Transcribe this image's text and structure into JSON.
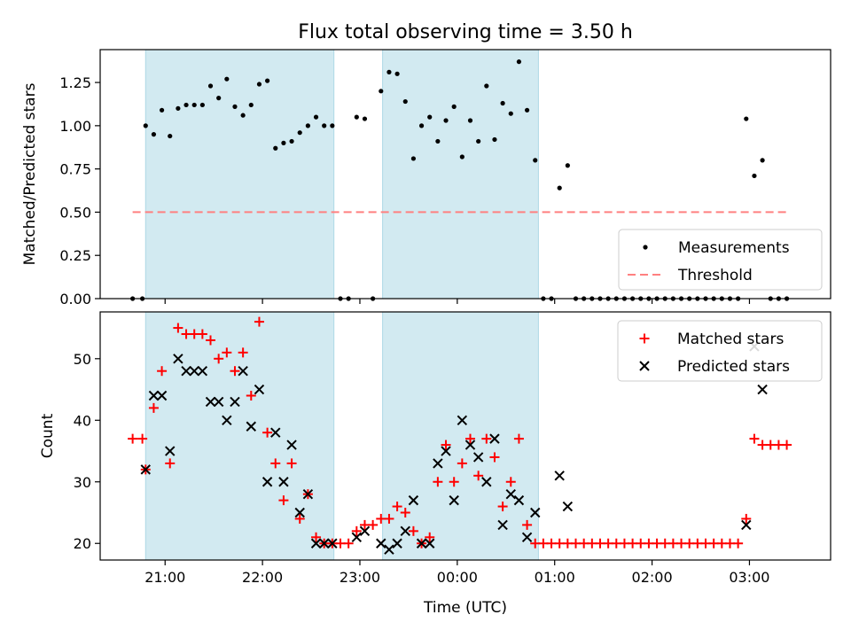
{
  "chart_data": [
    {
      "type": "scatter",
      "title": "Flux total observing time = 3.50 h",
      "xlabel": "",
      "ylabel": "Matched/Predicted stars",
      "xlim": [
        "20:20",
        "03:50"
      ],
      "ylim": [
        0,
        1.44
      ],
      "x_unit": "time (UTC, hh:mm)",
      "yticks": [
        "0.00",
        "0.25",
        "0.50",
        "0.75",
        "1.00",
        "1.25"
      ],
      "xticks_visible": false,
      "shaded_intervals": [
        [
          "20:48",
          "22:44"
        ],
        [
          "23:14",
          "00:50"
        ]
      ],
      "shade_color": "#add8e6",
      "series": [
        {
          "name": "Measurements",
          "marker": "dot",
          "color": "#000000",
          "points": [
            [
              "20:40",
              0.0
            ],
            [
              "20:46",
              0.0
            ],
            [
              "20:48",
              1.0
            ],
            [
              "20:53",
              0.95
            ],
            [
              "20:58",
              1.09
            ],
            [
              "21:03",
              0.94
            ],
            [
              "21:08",
              1.1
            ],
            [
              "21:13",
              1.12
            ],
            [
              "21:18",
              1.12
            ],
            [
              "21:23",
              1.12
            ],
            [
              "21:28",
              1.23
            ],
            [
              "21:33",
              1.16
            ],
            [
              "21:38",
              1.27
            ],
            [
              "21:43",
              1.11
            ],
            [
              "21:48",
              1.06
            ],
            [
              "21:53",
              1.12
            ],
            [
              "21:58",
              1.24
            ],
            [
              "22:03",
              1.26
            ],
            [
              "22:08",
              0.87
            ],
            [
              "22:13",
              0.9
            ],
            [
              "22:18",
              0.91
            ],
            [
              "22:23",
              0.96
            ],
            [
              "22:28",
              1.0
            ],
            [
              "22:33",
              1.05
            ],
            [
              "22:38",
              1.0
            ],
            [
              "22:43",
              1.0
            ],
            [
              "22:48",
              0.0
            ],
            [
              "22:53",
              0.0
            ],
            [
              "22:58",
              1.05
            ],
            [
              "23:03",
              1.04
            ],
            [
              "23:08",
              0.0
            ],
            [
              "23:13",
              1.2
            ],
            [
              "23:18",
              1.31
            ],
            [
              "23:23",
              1.3
            ],
            [
              "23:28",
              1.14
            ],
            [
              "23:33",
              0.81
            ],
            [
              "23:38",
              1.0
            ],
            [
              "23:43",
              1.05
            ],
            [
              "23:48",
              0.91
            ],
            [
              "23:53",
              1.03
            ],
            [
              "23:58",
              1.11
            ],
            [
              "00:03",
              0.82
            ],
            [
              "00:08",
              1.03
            ],
            [
              "00:13",
              0.91
            ],
            [
              "00:18",
              1.23
            ],
            [
              "00:23",
              0.92
            ],
            [
              "00:28",
              1.13
            ],
            [
              "00:33",
              1.07
            ],
            [
              "00:38",
              1.37
            ],
            [
              "00:43",
              1.09
            ],
            [
              "00:48",
              0.8
            ],
            [
              "00:53",
              0.0
            ],
            [
              "00:58",
              0.0
            ],
            [
              "01:03",
              0.64
            ],
            [
              "01:08",
              0.77
            ],
            [
              "01:13",
              0.0
            ],
            [
              "01:18",
              0.0
            ],
            [
              "01:23",
              0.0
            ],
            [
              "01:28",
              0.0
            ],
            [
              "01:33",
              0.0
            ],
            [
              "01:38",
              0.0
            ],
            [
              "01:43",
              0.0
            ],
            [
              "01:48",
              0.0
            ],
            [
              "01:53",
              0.0
            ],
            [
              "01:58",
              0.0
            ],
            [
              "02:03",
              0.0
            ],
            [
              "02:08",
              0.0
            ],
            [
              "02:13",
              0.0
            ],
            [
              "02:18",
              0.0
            ],
            [
              "02:23",
              0.0
            ],
            [
              "02:28",
              0.0
            ],
            [
              "02:33",
              0.0
            ],
            [
              "02:38",
              0.0
            ],
            [
              "02:43",
              0.0
            ],
            [
              "02:48",
              0.0
            ],
            [
              "02:53",
              0.0
            ],
            [
              "02:58",
              1.04
            ],
            [
              "03:03",
              0.71
            ],
            [
              "03:08",
              0.8
            ],
            [
              "03:13",
              0.0
            ],
            [
              "03:18",
              0.0
            ],
            [
              "03:23",
              0.0
            ]
          ]
        },
        {
          "name": "Threshold",
          "marker": "dashed-line",
          "color": "#ff8080",
          "points": [
            [
              "20:40",
              0.5
            ],
            [
              "03:23",
              0.5
            ]
          ]
        }
      ],
      "legend": "lower right",
      "legend_entries": [
        "Measurements",
        "Threshold"
      ]
    },
    {
      "type": "scatter",
      "title": "",
      "xlabel": "Time (UTC)",
      "ylabel": "Count",
      "xlim": [
        "20:20",
        "03:50"
      ],
      "ylim": [
        17.3,
        57.6
      ],
      "x_unit": "time (UTC, hh:mm)",
      "xticks": [
        "21:00",
        "22:00",
        "23:00",
        "00:00",
        "01:00",
        "02:00",
        "03:00"
      ],
      "yticks": [
        "20",
        "30",
        "40",
        "50"
      ],
      "shaded_intervals": [
        [
          "20:48",
          "22:44"
        ],
        [
          "23:14",
          "00:50"
        ]
      ],
      "shade_color": "#add8e6",
      "series": [
        {
          "name": "Matched stars",
          "marker": "plus",
          "color": "#ff0000",
          "points": [
            [
              "20:40",
              37
            ],
            [
              "20:46",
              37
            ],
            [
              "20:48",
              32
            ],
            [
              "20:53",
              42
            ],
            [
              "20:58",
              48
            ],
            [
              "21:03",
              33
            ],
            [
              "21:08",
              55
            ],
            [
              "21:13",
              54
            ],
            [
              "21:18",
              54
            ],
            [
              "21:23",
              54
            ],
            [
              "21:28",
              53
            ],
            [
              "21:33",
              50
            ],
            [
              "21:38",
              51
            ],
            [
              "21:43",
              48
            ],
            [
              "21:48",
              51
            ],
            [
              "21:53",
              44
            ],
            [
              "21:58",
              56
            ],
            [
              "22:03",
              38
            ],
            [
              "22:08",
              33
            ],
            [
              "22:13",
              27
            ],
            [
              "22:18",
              33
            ],
            [
              "22:23",
              24
            ],
            [
              "22:28",
              28
            ],
            [
              "22:33",
              21
            ],
            [
              "22:38",
              20
            ],
            [
              "22:43",
              20
            ],
            [
              "22:48",
              20
            ],
            [
              "22:53",
              20
            ],
            [
              "22:58",
              22
            ],
            [
              "23:03",
              23
            ],
            [
              "23:08",
              23
            ],
            [
              "23:13",
              24
            ],
            [
              "23:18",
              24
            ],
            [
              "23:23",
              26
            ],
            [
              "23:28",
              25
            ],
            [
              "23:33",
              22
            ],
            [
              "23:38",
              20
            ],
            [
              "23:43",
              21
            ],
            [
              "23:48",
              30
            ],
            [
              "23:53",
              36
            ],
            [
              "23:58",
              30
            ],
            [
              "00:03",
              33
            ],
            [
              "00:08",
              37
            ],
            [
              "00:13",
              31
            ],
            [
              "00:18",
              37
            ],
            [
              "00:23",
              34
            ],
            [
              "00:28",
              26
            ],
            [
              "00:33",
              30
            ],
            [
              "00:38",
              37
            ],
            [
              "00:43",
              23
            ],
            [
              "00:48",
              20
            ],
            [
              "00:53",
              20
            ],
            [
              "00:58",
              20
            ],
            [
              "01:03",
              20
            ],
            [
              "01:08",
              20
            ],
            [
              "01:13",
              20
            ],
            [
              "01:18",
              20
            ],
            [
              "01:23",
              20
            ],
            [
              "01:28",
              20
            ],
            [
              "01:33",
              20
            ],
            [
              "01:38",
              20
            ],
            [
              "01:43",
              20
            ],
            [
              "01:48",
              20
            ],
            [
              "01:53",
              20
            ],
            [
              "01:58",
              20
            ],
            [
              "02:03",
              20
            ],
            [
              "02:08",
              20
            ],
            [
              "02:13",
              20
            ],
            [
              "02:18",
              20
            ],
            [
              "02:23",
              20
            ],
            [
              "02:28",
              20
            ],
            [
              "02:33",
              20
            ],
            [
              "02:38",
              20
            ],
            [
              "02:43",
              20
            ],
            [
              "02:48",
              20
            ],
            [
              "02:53",
              20
            ],
            [
              "02:58",
              24
            ],
            [
              "03:03",
              37
            ],
            [
              "03:08",
              36
            ],
            [
              "03:13",
              36
            ],
            [
              "03:18",
              36
            ],
            [
              "03:23",
              36
            ]
          ]
        },
        {
          "name": "Predicted stars",
          "marker": "x",
          "color": "#000000",
          "points": [
            [
              "20:48",
              32
            ],
            [
              "20:53",
              44
            ],
            [
              "20:58",
              44
            ],
            [
              "21:03",
              35
            ],
            [
              "21:08",
              50
            ],
            [
              "21:13",
              48
            ],
            [
              "21:18",
              48
            ],
            [
              "21:23",
              48
            ],
            [
              "21:28",
              43
            ],
            [
              "21:33",
              43
            ],
            [
              "21:38",
              40
            ],
            [
              "21:43",
              43
            ],
            [
              "21:48",
              48
            ],
            [
              "21:53",
              39
            ],
            [
              "21:58",
              45
            ],
            [
              "22:03",
              30
            ],
            [
              "22:08",
              38
            ],
            [
              "22:13",
              30
            ],
            [
              "22:18",
              36
            ],
            [
              "22:23",
              25
            ],
            [
              "22:28",
              28
            ],
            [
              "22:33",
              20
            ],
            [
              "22:38",
              20
            ],
            [
              "22:43",
              20
            ],
            [
              "22:58",
              21
            ],
            [
              "23:03",
              22
            ],
            [
              "23:13",
              20
            ],
            [
              "23:18",
              19
            ],
            [
              "23:23",
              20
            ],
            [
              "23:28",
              22
            ],
            [
              "23:33",
              27
            ],
            [
              "23:38",
              20
            ],
            [
              "23:43",
              20
            ],
            [
              "23:48",
              33
            ],
            [
              "23:53",
              35
            ],
            [
              "23:58",
              27
            ],
            [
              "00:03",
              40
            ],
            [
              "00:08",
              36
            ],
            [
              "00:13",
              34
            ],
            [
              "00:18",
              30
            ],
            [
              "00:23",
              37
            ],
            [
              "00:28",
              23
            ],
            [
              "00:33",
              28
            ],
            [
              "00:38",
              27
            ],
            [
              "00:43",
              21
            ],
            [
              "00:48",
              25
            ],
            [
              "01:03",
              31
            ],
            [
              "01:08",
              26
            ],
            [
              "02:58",
              23
            ],
            [
              "03:03",
              52
            ],
            [
              "03:08",
              45
            ]
          ]
        }
      ],
      "legend": "upper right",
      "legend_entries": [
        "Matched stars",
        "Predicted stars"
      ]
    }
  ]
}
